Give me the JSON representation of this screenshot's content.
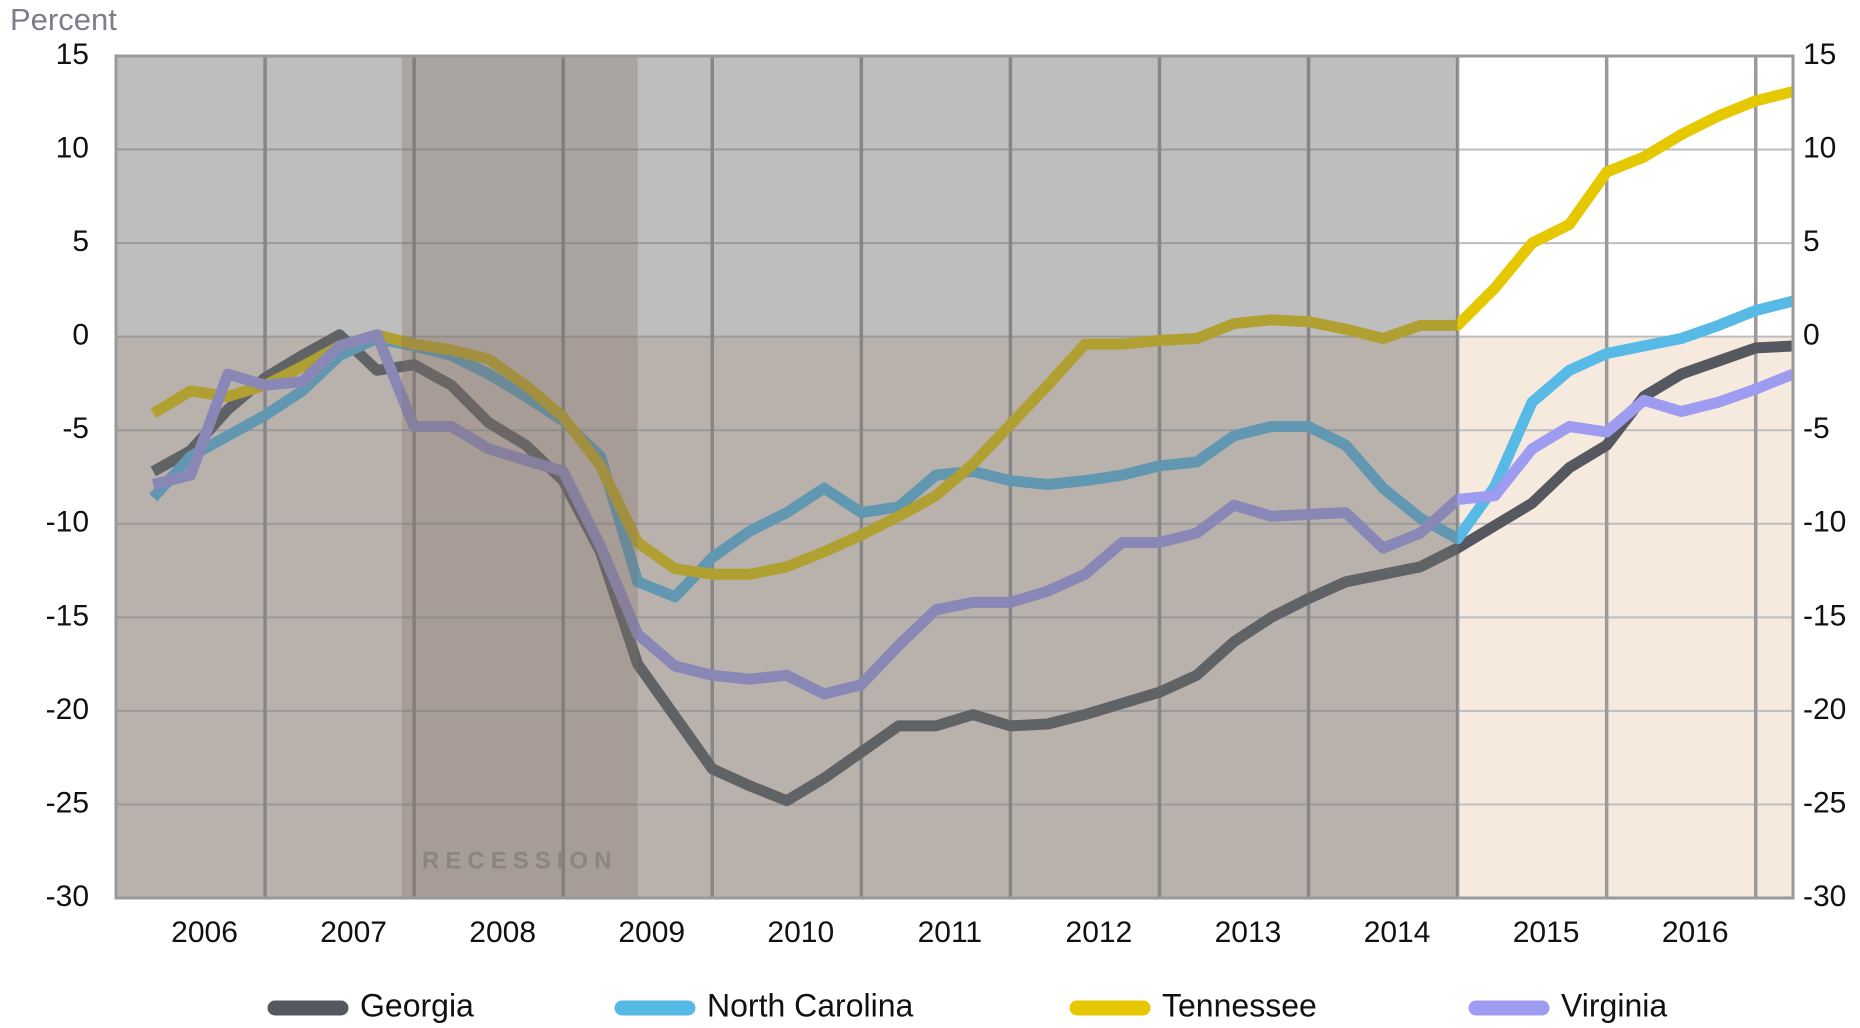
{
  "chart_data": {
    "type": "line",
    "y_label": "Percent",
    "x": [
      2006.25,
      2006.5,
      2006.75,
      2007,
      2007.25,
      2007.5,
      2007.75,
      2008,
      2008.25,
      2008.5,
      2008.75,
      2009,
      2009.25,
      2009.5,
      2009.75,
      2010,
      2010.25,
      2010.5,
      2010.75,
      2011,
      2011.25,
      2011.5,
      2011.75,
      2012,
      2012.25,
      2012.5,
      2012.75,
      2013,
      2013.25,
      2013.5,
      2013.75,
      2014,
      2014.25,
      2014.5,
      2014.75,
      2015,
      2015.25,
      2015.5,
      2015.75,
      2016,
      2016.25,
      2016.5,
      2016.75,
      2017,
      2017.25
    ],
    "series": [
      {
        "name": "Georgia",
        "color": "#55595f",
        "values": [
          -7.2,
          -6.1,
          -3.9,
          -2.2,
          -1.0,
          0.1,
          -1.8,
          -1.5,
          -2.6,
          -4.6,
          -5.8,
          -7.7,
          -11.5,
          -17.5,
          -20.3,
          -23.1,
          -24.0,
          -24.8,
          -23.6,
          -22.2,
          -20.8,
          -20.8,
          -20.2,
          -20.8,
          -20.7,
          -20.2,
          -19.6,
          -19.0,
          -18.1,
          -16.3,
          -15.0,
          -14.0,
          -13.1,
          -12.7,
          -12.3,
          -11.3,
          -10.1,
          -8.9,
          -7.0,
          -5.8,
          -3.2,
          -2.0,
          -1.3,
          -0.6,
          -0.5
        ]
      },
      {
        "name": "North Carolina",
        "color": "#57b9e5",
        "values": [
          -8.6,
          -6.4,
          -5.3,
          -4.2,
          -2.9,
          -1.0,
          -0.1,
          -0.5,
          -1.0,
          -2.0,
          -3.2,
          -4.5,
          -6.4,
          -13.1,
          -13.9,
          -11.8,
          -10.4,
          -9.4,
          -8.1,
          -9.4,
          -9.1,
          -7.4,
          -7.2,
          -7.7,
          -7.9,
          -7.7,
          -7.4,
          -6.9,
          -6.7,
          -5.3,
          -4.8,
          -4.8,
          -5.8,
          -8.1,
          -9.7,
          -10.8,
          -8.0,
          -3.5,
          -1.8,
          -0.9,
          -0.5,
          -0.1,
          0.6,
          1.4,
          1.9
        ]
      },
      {
        "name": "Tennessee",
        "color": "#e6c800",
        "values": [
          -4.1,
          -2.9,
          -3.2,
          -2.6,
          -1.6,
          -0.5,
          0.1,
          -0.4,
          -0.7,
          -1.2,
          -2.6,
          -4.3,
          -6.9,
          -11.0,
          -12.4,
          -12.7,
          -12.7,
          -12.3,
          -11.5,
          -10.6,
          -9.6,
          -8.5,
          -6.8,
          -4.7,
          -2.6,
          -0.4,
          -0.4,
          -0.2,
          -0.1,
          0.7,
          0.9,
          0.8,
          0.4,
          -0.1,
          0.6,
          0.6,
          2.6,
          5.0,
          6.0,
          8.8,
          9.6,
          10.8,
          11.8,
          12.6,
          13.1
        ]
      },
      {
        "name": "Virginia",
        "color": "#9d9cf0",
        "values": [
          -7.9,
          -7.4,
          -2.0,
          -2.6,
          -2.4,
          -0.5,
          0.1,
          -4.8,
          -4.8,
          -6.0,
          -6.6,
          -7.2,
          -11.2,
          -15.9,
          -17.6,
          -18.1,
          -18.3,
          -18.1,
          -19.1,
          -18.6,
          -16.5,
          -14.6,
          -14.2,
          -14.2,
          -13.6,
          -12.7,
          -11.0,
          -11.0,
          -10.5,
          -9.0,
          -9.6,
          -9.5,
          -9.4,
          -11.3,
          -10.5,
          -8.7,
          -8.5,
          -6.0,
          -4.8,
          -5.1,
          -3.4,
          -4.0,
          -3.5,
          -2.8,
          -2.0
        ]
      }
    ],
    "xlim": [
      2006,
      2017.25
    ],
    "xticks": [
      {
        "value": 2006,
        "label": "2006"
      },
      {
        "value": 2007,
        "label": "2007"
      },
      {
        "value": 2008,
        "label": "2008"
      },
      {
        "value": 2009,
        "label": "2009"
      },
      {
        "value": 2010,
        "label": "2010"
      },
      {
        "value": 2011,
        "label": "2011"
      },
      {
        "value": 2012,
        "label": "2012"
      },
      {
        "value": 2013,
        "label": "2013"
      },
      {
        "value": 2014,
        "label": "2014"
      },
      {
        "value": 2015,
        "label": "2015"
      },
      {
        "value": 2016,
        "label": "2016"
      }
    ],
    "ylim": [
      -30,
      15
    ],
    "yticks": [
      -30,
      -25,
      -20,
      -15,
      -10,
      -5,
      0,
      5,
      10,
      15
    ],
    "y2lim": [
      -30,
      15
    ],
    "y2ticks": [
      -30,
      -25,
      -20,
      -15,
      -10,
      -5,
      0,
      5,
      10,
      15
    ],
    "recession": {
      "label": "RECESSION",
      "start": 2007.917,
      "end": 2009.5
    },
    "forecast_start": 2015,
    "grid": true,
    "legend": "bottom"
  }
}
